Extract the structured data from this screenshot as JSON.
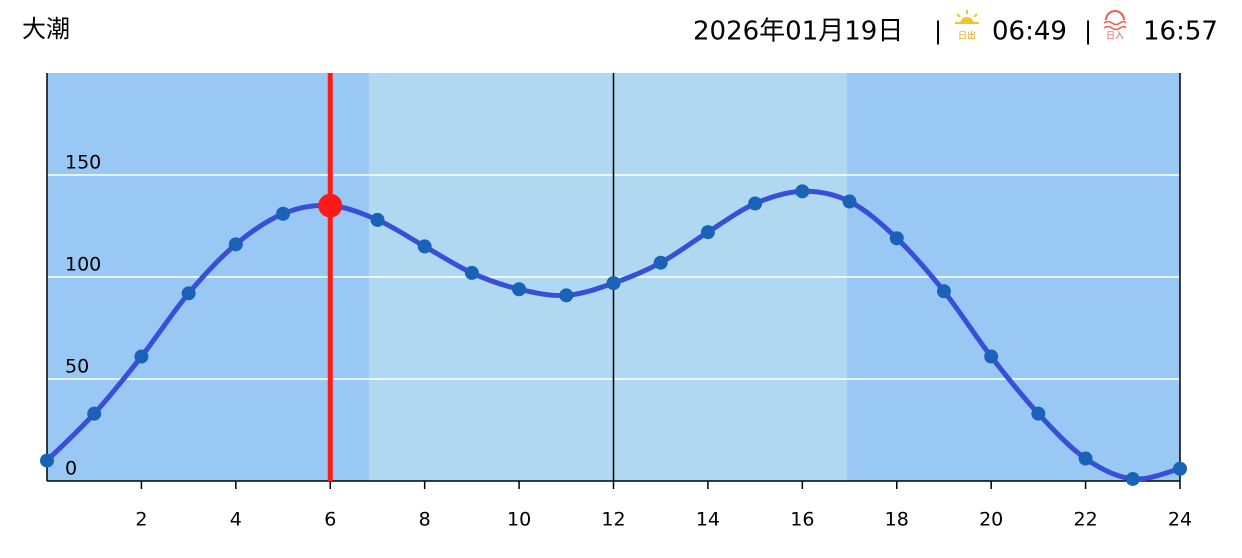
{
  "header": {
    "tide_name": "大潮",
    "date": "2026年01月19日",
    "sunrise_icon_label": "日出",
    "sunrise": "06:49",
    "sunset_icon_label": "日入",
    "sunset": "16:57"
  },
  "chart_data": {
    "type": "line",
    "x": [
      0,
      1,
      2,
      3,
      4,
      5,
      6,
      7,
      8,
      9,
      10,
      11,
      12,
      13,
      14,
      15,
      16,
      17,
      18,
      19,
      20,
      21,
      22,
      23,
      24
    ],
    "series": [
      {
        "color": "#3a4fd8",
        "marker_color": "#1a62b8",
        "values": [
          10,
          33,
          61,
          92,
          116,
          131,
          135,
          128,
          115,
          102,
          94,
          91,
          97,
          107,
          122,
          136,
          142,
          137,
          119,
          93,
          61,
          33,
          11,
          1,
          6
        ]
      }
    ],
    "xlim": [
      0,
      24
    ],
    "xticks": [
      2,
      4,
      6,
      8,
      10,
      12,
      14,
      16,
      18,
      20,
      22,
      24
    ],
    "ylim": [
      0,
      200
    ],
    "yticks": [
      0,
      50,
      100,
      150
    ],
    "grid": true,
    "night_color": "#99c8f5",
    "day_color": "#b0d8f0",
    "highlight_index": 6,
    "highlight_color": "#ff1a1a",
    "reference_x": 12
  }
}
